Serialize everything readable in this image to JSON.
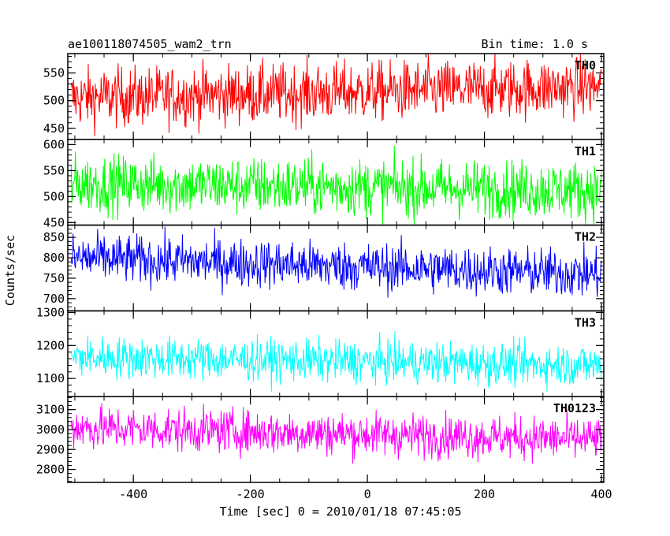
{
  "chart_data": {
    "type": "line",
    "title": "ae100118074505_wam2_trn",
    "bin_time_label": "Bin time: 1.0 s",
    "xlabel": "Time [sec] 0 = 2010/01/18 07:45:05",
    "ylabel": "Counts/sec",
    "xlim": [
      -512,
      404
    ],
    "xticks": [
      -400,
      -200,
      0,
      200,
      400
    ],
    "x_start": -506,
    "x_end": 400,
    "bin_time": 1.0,
    "panels": [
      {
        "name": "TH0",
        "color": "#ff0000",
        "ylim": [
          430,
          585
        ],
        "yticks": [
          450,
          500,
          550
        ],
        "mean_start": 505,
        "mean_end": 525,
        "scatter": 27
      },
      {
        "name": "TH1",
        "color": "#00ff00",
        "ylim": [
          445,
          610
        ],
        "yticks": [
          450,
          500,
          550,
          600
        ],
        "mean_start": 525,
        "mean_end": 512,
        "scatter": 28
      },
      {
        "name": "TH2",
        "color": "#0000ff",
        "ylim": [
          670,
          880
        ],
        "yticks": [
          700,
          750,
          800,
          850
        ],
        "mean_start": 800,
        "mean_end": 760,
        "scatter": 30
      },
      {
        "name": "TH3",
        "color": "#00ffff",
        "ylim": [
          1045,
          1305
        ],
        "yticks": [
          1100,
          1200,
          1300
        ],
        "mean_start": 1165,
        "mean_end": 1140,
        "scatter": 32
      },
      {
        "name": "TH0123",
        "color": "#ff00ff",
        "ylim": [
          2735,
          3165
        ],
        "yticks": [
          2800,
          2900,
          3000,
          3100
        ],
        "mean_start": 3010,
        "mean_end": 2950,
        "scatter": 55
      }
    ]
  }
}
